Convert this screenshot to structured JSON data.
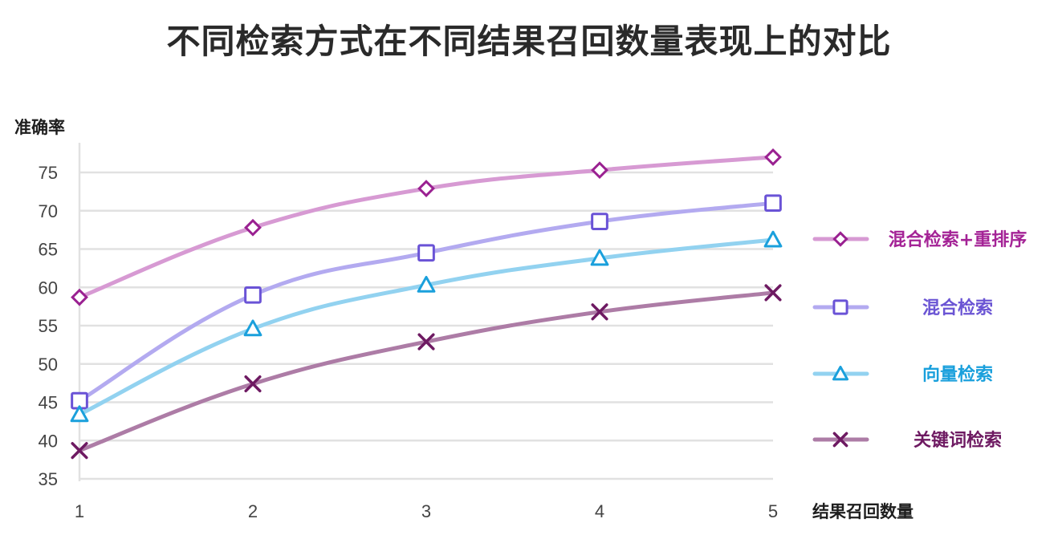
{
  "chart_data": {
    "type": "line",
    "title": "不同检索方式在不同结果召回数量表现上的对比",
    "xlabel": "结果召回数量",
    "ylabel": "准确率",
    "x": [
      1,
      2,
      3,
      4,
      5
    ],
    "ylim": [
      35,
      77.5
    ],
    "yticks": [
      35,
      40,
      45,
      50,
      55,
      60,
      65,
      70,
      75
    ],
    "grid": true,
    "legend_position": "right",
    "series": [
      {
        "name": "混合检索+重排序",
        "values": [
          58.7,
          67.8,
          72.9,
          75.3,
          77.0
        ],
        "line_color": "#d79ad3",
        "marker_color": "#9a2191",
        "marker": "diamond",
        "text_color": "#a42396"
      },
      {
        "name": "混合检索",
        "values": [
          45.2,
          59.0,
          64.5,
          68.6,
          71.0
        ],
        "line_color": "#b3aaf0",
        "marker_color": "#6a53d6",
        "marker": "square",
        "text_color": "#6b55d4"
      },
      {
        "name": "向量检索",
        "values": [
          43.4,
          54.6,
          60.3,
          63.8,
          66.2
        ],
        "line_color": "#92d2f0",
        "marker_color": "#1aa0dc",
        "marker": "triangle",
        "text_color": "#1aa0dc"
      },
      {
        "name": "关键词检索",
        "values": [
          38.7,
          47.4,
          52.9,
          56.8,
          59.3
        ],
        "line_color": "#ad7ca6",
        "marker_color": "#6e1a62",
        "marker": "x",
        "text_color": "#6e1a62"
      }
    ]
  }
}
